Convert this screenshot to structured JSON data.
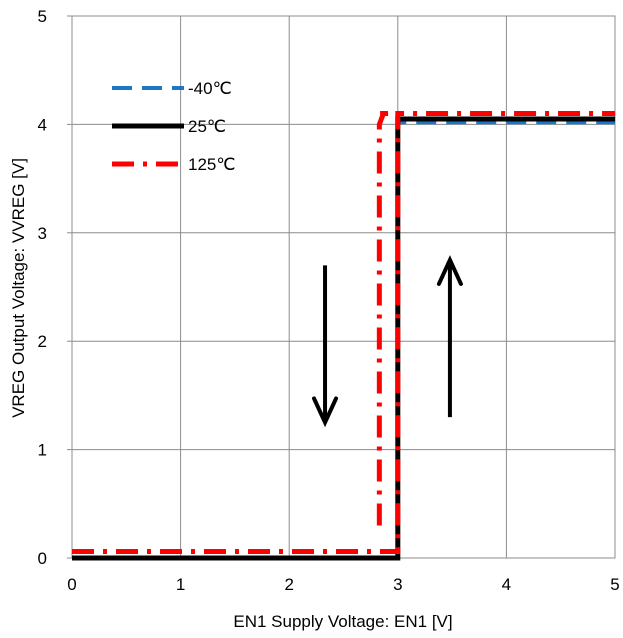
{
  "chart_data": {
    "type": "line",
    "title": "",
    "xlabel": "EN1 Supply Voltage: EN1 [V]",
    "ylabel": "VREG Output Voltage: VVREG [V]",
    "xlim": [
      0,
      5
    ],
    "ylim": [
      0,
      5
    ],
    "xticks": [
      "0",
      "1",
      "2",
      "3",
      "4",
      "5"
    ],
    "yticks": [
      "0",
      "1",
      "2",
      "3",
      "4",
      "5"
    ],
    "grid": true,
    "legend_position": "top-left",
    "series": [
      {
        "name": "-40℃",
        "color": "#1f77c4",
        "dash": "dashed",
        "x": [
          0,
          2.98,
          3.0,
          3.0,
          5
        ],
        "y": [
          0.0,
          0.0,
          0.0,
          4.02,
          4.02
        ]
      },
      {
        "name": "25℃",
        "color": "#000000",
        "dash": "solid",
        "x": [
          0,
          2.98,
          3.0,
          3.0,
          5
        ],
        "y": [
          0.0,
          0.0,
          0.0,
          4.05,
          4.05
        ]
      },
      {
        "name": "125℃",
        "color": "#ff0000",
        "dash": "dashdot",
        "x": [
          0,
          2.98,
          3.0,
          3.0,
          5
        ],
        "y": [
          0.06,
          0.06,
          0.06,
          4.1,
          4.1
        ]
      },
      {
        "name": "",
        "color": "#ff0000",
        "dash": "dashdot",
        "x": [
          2.83,
          2.83,
          2.86,
          2.86,
          3.0
        ],
        "y": [
          0.3,
          4.0,
          4.08,
          4.1,
          4.1
        ]
      }
    ],
    "annotations": [
      {
        "kind": "arrow",
        "direction": "down",
        "x": 2.33,
        "y_from": 2.7,
        "y_to": 1.25
      },
      {
        "kind": "arrow",
        "direction": "up",
        "x": 3.48,
        "y_from": 1.3,
        "y_to": 2.75
      }
    ]
  }
}
